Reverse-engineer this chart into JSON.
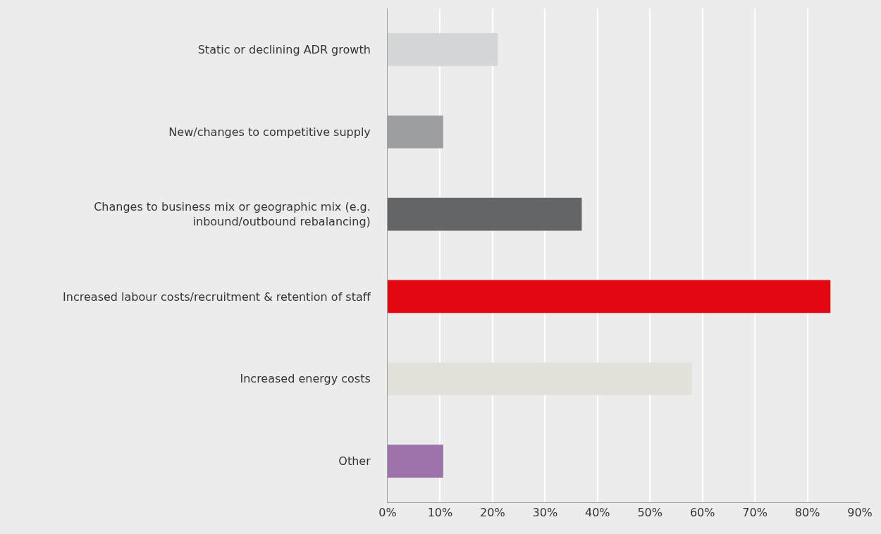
{
  "chart_data": {
    "type": "bar",
    "orientation": "horizontal",
    "categories": [
      "Static or declining ADR growth",
      "New/changes to competitive supply",
      "Changes to business mix or geographic mix (e.g. inbound/outbound rebalancing)",
      "Increased labour costs/recruitment & retention of staff",
      "Increased energy costs",
      "Other"
    ],
    "values": [
      21,
      10.6,
      37,
      84.4,
      58,
      10.6
    ],
    "colors": [
      "#d5d6d8",
      "#9d9ea1",
      "#646569",
      "#e30613",
      "#e4e0da",
      "#9b73a8"
    ],
    "xlim": [
      0,
      90
    ],
    "xticks": [
      {
        "value": 0,
        "label": "0%"
      },
      {
        "value": 10,
        "label": "10%"
      },
      {
        "value": 20,
        "label": "20%"
      },
      {
        "value": 30,
        "label": "30%"
      },
      {
        "value": 40,
        "label": "40%"
      },
      {
        "value": 50,
        "label": "50%"
      },
      {
        "value": 60,
        "label": "60%"
      },
      {
        "value": 70,
        "label": "70%"
      },
      {
        "value": 80,
        "label": "80%"
      },
      {
        "value": 90,
        "label": "90%"
      }
    ],
    "grid": "x",
    "legend": false
  }
}
